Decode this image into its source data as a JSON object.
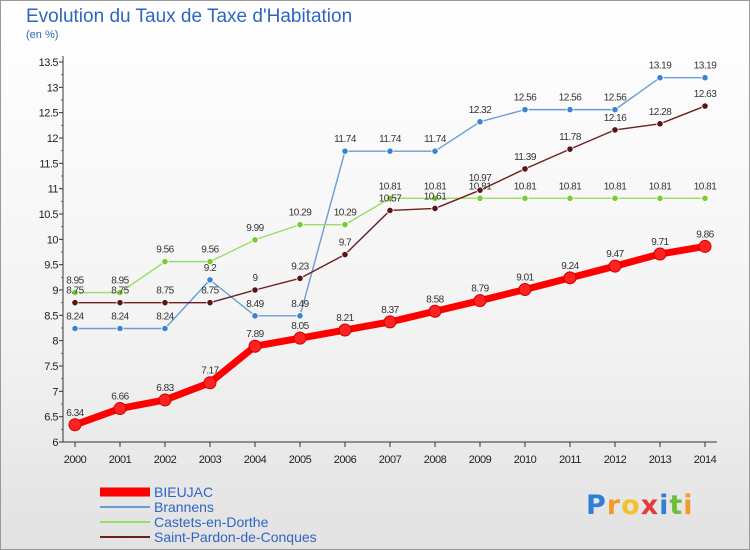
{
  "title": "Evolution du Taux de Taxe d'Habitation",
  "subtitle": "(en %)",
  "colors": {
    "title": "#2f66c4"
  },
  "chart_data": {
    "type": "line",
    "x": [
      "2000",
      "2001",
      "2002",
      "2003",
      "2004",
      "2005",
      "2006",
      "2007",
      "2008",
      "2009",
      "2010",
      "2011",
      "2012",
      "2013",
      "2014"
    ],
    "ylim": [
      6,
      13.5
    ],
    "yticks": [
      "6",
      "6.5",
      "7",
      "7.5",
      "8",
      "8.5",
      "9",
      "9.5",
      "10",
      "10.5",
      "11",
      "11.5",
      "12",
      "12.5",
      "13",
      "13.5"
    ],
    "grid": false,
    "legend_position": "bottom-left",
    "series": [
      {
        "name": "BIEUJAC",
        "color": "#ff0000",
        "marker": "#ff2222",
        "values": [
          6.34,
          6.66,
          6.83,
          7.17,
          7.89,
          8.05,
          8.21,
          8.37,
          8.58,
          8.79,
          9.01,
          9.24,
          9.47,
          9.71,
          9.86
        ],
        "labels": [
          "6.34",
          "6.66",
          "6.83",
          "7.17",
          "7.89",
          "8.05",
          "8.21",
          "8.37",
          "8.58",
          "8.79",
          "9.01",
          "9.24",
          "9.47",
          "9.71",
          "9.86"
        ]
      },
      {
        "name": "Brannens",
        "color": "#6a9dd4",
        "marker": "#3c83d3",
        "values": [
          8.24,
          8.24,
          8.24,
          9.2,
          8.49,
          8.49,
          11.74,
          11.74,
          11.74,
          12.32,
          12.56,
          12.56,
          12.56,
          13.19,
          13.19
        ],
        "labels": [
          "8.24",
          "8.24",
          "8.24",
          "9.2",
          "8.49",
          "8.49",
          "11.74",
          "11.74",
          "11.74",
          "12.32",
          "12.56",
          "12.56",
          "12.56",
          "13.19",
          "13.19"
        ]
      },
      {
        "name": "Castets-en-Dorthe",
        "color": "#99dd66",
        "marker": "#77cc33",
        "values": [
          8.95,
          8.95,
          9.56,
          9.56,
          9.99,
          10.29,
          10.29,
          10.81,
          10.81,
          10.81,
          10.81,
          10.81,
          10.81,
          10.81,
          10.81
        ],
        "labels": [
          "8.95",
          "8.95",
          "9.56",
          "9.56",
          "9.99",
          "10.29",
          "10.29",
          "10.81",
          "10.81",
          "10.81",
          "10.81",
          "10.81",
          "10.81",
          "10.81",
          "10.81"
        ]
      },
      {
        "name": "Saint-Pardon-de-Conques",
        "color": "#6b1f1f",
        "marker": "#5a1414",
        "values": [
          8.75,
          8.75,
          8.75,
          8.75,
          9,
          9.23,
          9.7,
          10.57,
          10.61,
          10.97,
          11.39,
          11.78,
          12.16,
          12.28,
          12.63
        ],
        "labels": [
          "8.75",
          "8.75",
          "8.75",
          "8.75",
          "9",
          "9.23",
          "9.7",
          "10.57",
          "10.61",
          "10.97",
          "11.39",
          "11.78",
          "12.16",
          "12.28",
          "12.63"
        ]
      }
    ]
  },
  "logo": {
    "text": "Proxiti",
    "letters": [
      "P",
      "r",
      "o",
      "x",
      "i",
      "t",
      "i"
    ],
    "colors": [
      "#2f7fd6",
      "#f29a2e",
      "#f2c12e",
      "#e33b3b",
      "#2f7fd6",
      "#6cbf3c",
      "#f29a2e"
    ]
  }
}
